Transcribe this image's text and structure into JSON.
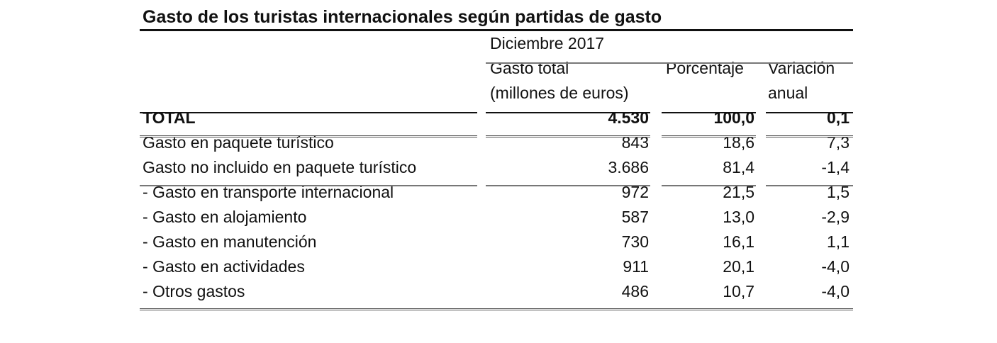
{
  "title": "Gasto de los turistas internacionales según partidas de gasto",
  "period": "Diciembre 2017",
  "columns": {
    "gasto_total_line1": "Gasto total",
    "gasto_total_line2": "(millones de euros)",
    "porcentaje": "Porcentaje",
    "variacion_line1": "Variación",
    "variacion_line2": "anual"
  },
  "rows": [
    {
      "label": "TOTAL",
      "gasto": "4.530",
      "porcentaje": "100,0",
      "variacion": "0,1"
    },
    {
      "label": "Gasto en paquete turístico",
      "gasto": "843",
      "porcentaje": "18,6",
      "variacion": "7,3"
    },
    {
      "label": "Gasto no incluido en paquete turístico",
      "gasto": "3.686",
      "porcentaje": "81,4",
      "variacion": "-1,4"
    },
    {
      "label": "- Gasto en transporte internacional",
      "gasto": "972",
      "porcentaje": "21,5",
      "variacion": "1,5"
    },
    {
      "label": "- Gasto en alojamiento",
      "gasto": "587",
      "porcentaje": "13,0",
      "variacion": "-2,9"
    },
    {
      "label": "- Gasto en manutención",
      "gasto": "730",
      "porcentaje": "16,1",
      "variacion": "1,1"
    },
    {
      "label": "- Gasto en actividades",
      "gasto": "911",
      "porcentaje": "20,1",
      "variacion": "-4,0"
    },
    {
      "label": "- Otros gastos",
      "gasto": "486",
      "porcentaje": "10,7",
      "variacion": "-4,0"
    }
  ]
}
